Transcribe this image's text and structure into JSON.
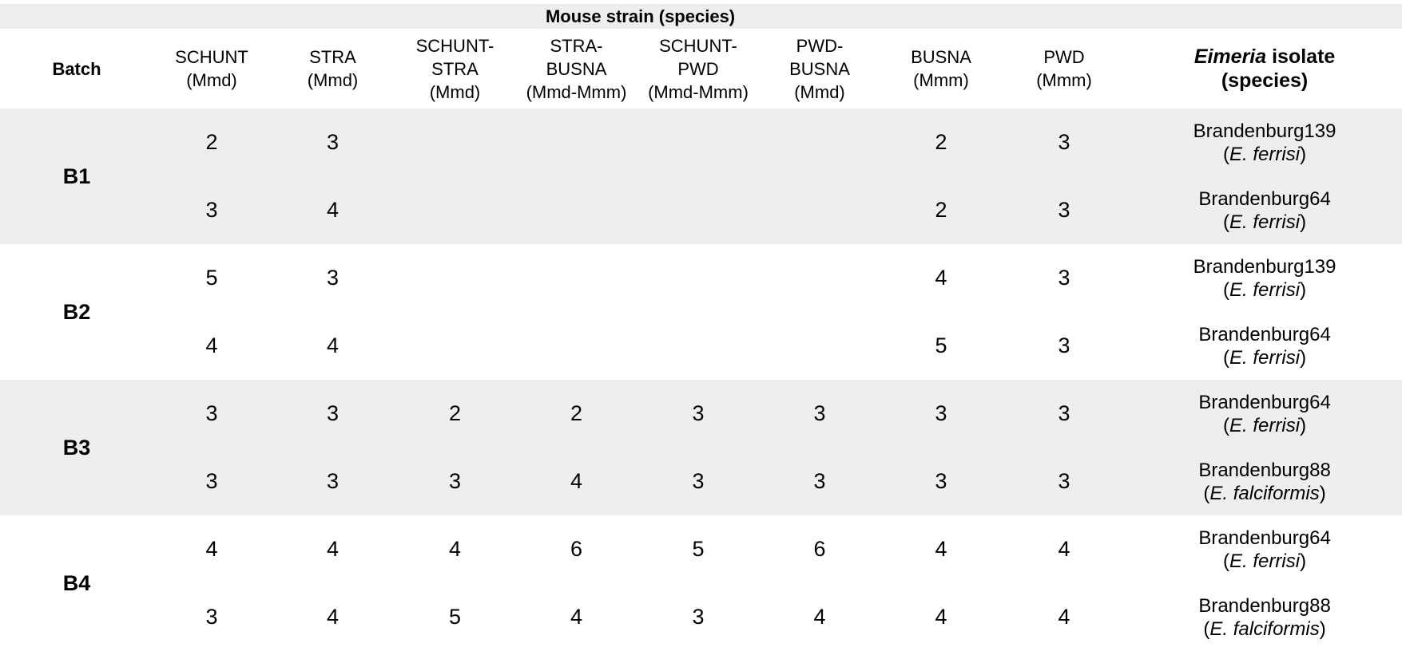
{
  "header": {
    "group_label": "Mouse strain (species)",
    "batch_label": "Batch",
    "isolate_label_italic": "Eimeria",
    "isolate_label_rest": " isolate",
    "isolate_label_species": "(species)",
    "columns": [
      {
        "line1": "SCHUNT",
        "line2": "(Mmd)",
        "line3": ""
      },
      {
        "line1": "STRA",
        "line2": "(Mmd)",
        "line3": ""
      },
      {
        "line1": "SCHUNT-",
        "line2": "STRA",
        "line3": "(Mmd)"
      },
      {
        "line1": "STRA-",
        "line2": "BUSNA",
        "line3": "(Mmd-Mmm)"
      },
      {
        "line1": "SCHUNT-",
        "line2": "PWD",
        "line3": "(Mmd-Mmm)"
      },
      {
        "line1": "PWD-",
        "line2": "BUSNA",
        "line3": "(Mmd)"
      },
      {
        "line1": "BUSNA",
        "line2": "(Mmm)",
        "line3": ""
      },
      {
        "line1": "PWD",
        "line2": "(Mmm)",
        "line3": ""
      }
    ]
  },
  "batches": [
    {
      "name": "B1",
      "rows": [
        {
          "values": [
            "2",
            "3",
            "",
            "",
            "",
            "",
            "2",
            "3"
          ],
          "isolate": "Brandenburg139",
          "species": "E. ferrisi"
        },
        {
          "values": [
            "3",
            "4",
            "",
            "",
            "",
            "",
            "2",
            "3"
          ],
          "isolate": "Brandenburg64",
          "species": "E. ferrisi"
        }
      ]
    },
    {
      "name": "B2",
      "rows": [
        {
          "values": [
            "5",
            "3",
            "",
            "",
            "",
            "",
            "4",
            "3"
          ],
          "isolate": "Brandenburg139",
          "species": "E. ferrisi"
        },
        {
          "values": [
            "4",
            "4",
            "",
            "",
            "",
            "",
            "5",
            "3"
          ],
          "isolate": "Brandenburg64",
          "species": "E. ferrisi"
        }
      ]
    },
    {
      "name": "B3",
      "rows": [
        {
          "values": [
            "3",
            "3",
            "2",
            "2",
            "3",
            "3",
            "3",
            "3"
          ],
          "isolate": "Brandenburg64",
          "species": "E. ferrisi"
        },
        {
          "values": [
            "3",
            "3",
            "3",
            "4",
            "3",
            "3",
            "3",
            "3"
          ],
          "isolate": "Brandenburg88",
          "species": "E. falciformis"
        }
      ]
    },
    {
      "name": "B4",
      "rows": [
        {
          "values": [
            "4",
            "4",
            "4",
            "6",
            "5",
            "6",
            "4",
            "4"
          ],
          "isolate": "Brandenburg64",
          "species": "E. ferrisi"
        },
        {
          "values": [
            "3",
            "4",
            "5",
            "4",
            "3",
            "4",
            "4",
            "4"
          ],
          "isolate": "Brandenburg88",
          "species": "E. falciformis"
        }
      ]
    }
  ]
}
